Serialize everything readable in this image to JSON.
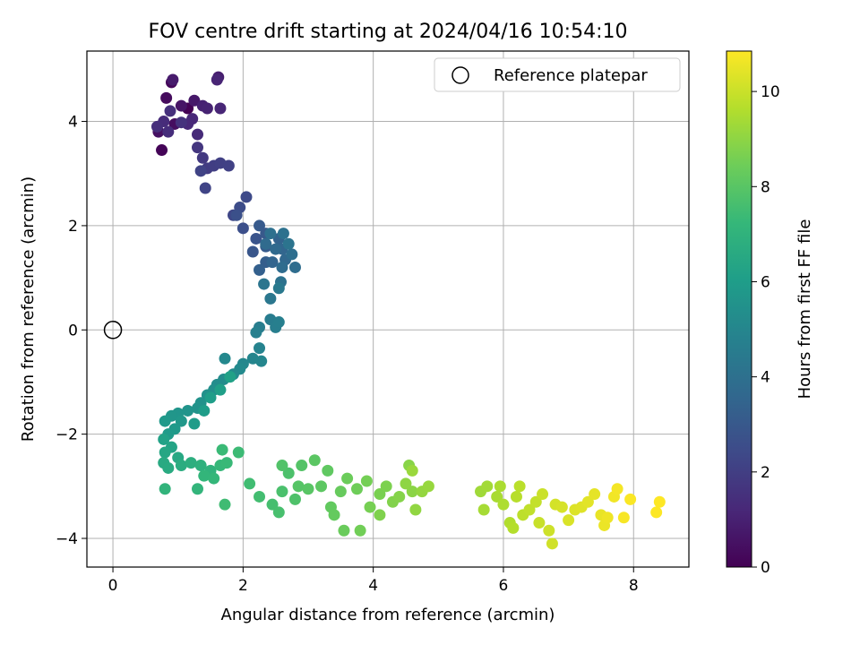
{
  "chart_data": {
    "type": "scatter",
    "title": "FOV centre drift starting at 2024/04/16 10:54:10",
    "xlabel": "Angular distance from reference (arcmin)",
    "ylabel": "Rotation from reference (arcmin)",
    "xlim": [
      -0.4,
      8.85
    ],
    "ylim": [
      -4.55,
      5.35
    ],
    "xticks": [
      0,
      2,
      4,
      6,
      8
    ],
    "yticks": [
      -4,
      -2,
      0,
      2,
      4
    ],
    "xtick_labels": [
      "0",
      "2",
      "4",
      "6",
      "8"
    ],
    "ytick_labels": [
      "−4",
      "−2",
      "0",
      "2",
      "4"
    ],
    "grid": true,
    "legend": {
      "position": "upper-right",
      "label": "Reference platepar"
    },
    "reference_point": {
      "x": 0,
      "y": 0
    },
    "colorbar": {
      "label": "Hours from first FF file",
      "colormap": "viridis",
      "range": [
        0,
        10.85
      ],
      "ticks": [
        0,
        2,
        4,
        6,
        8,
        10
      ],
      "tick_labels": [
        "0",
        "2",
        "4",
        "6",
        "8",
        "10"
      ]
    },
    "points": [
      {
        "x": 1.15,
        "y": 4.25,
        "h": 0.0
      },
      {
        "x": 0.75,
        "y": 3.45,
        "h": 0.1
      },
      {
        "x": 0.9,
        "y": 4.75,
        "h": 0.2
      },
      {
        "x": 0.82,
        "y": 4.45,
        "h": 0.3
      },
      {
        "x": 0.95,
        "y": 3.95,
        "h": 0.4
      },
      {
        "x": 0.7,
        "y": 3.8,
        "h": 0.5
      },
      {
        "x": 1.05,
        "y": 4.3,
        "h": 0.6
      },
      {
        "x": 1.25,
        "y": 4.4,
        "h": 0.7
      },
      {
        "x": 0.92,
        "y": 4.8,
        "h": 0.8
      },
      {
        "x": 1.62,
        "y": 4.85,
        "h": 0.9
      },
      {
        "x": 1.38,
        "y": 4.3,
        "h": 1.0
      },
      {
        "x": 1.45,
        "y": 4.25,
        "h": 1.05
      },
      {
        "x": 1.6,
        "y": 4.8,
        "h": 1.1
      },
      {
        "x": 1.65,
        "y": 4.25,
        "h": 1.15
      },
      {
        "x": 1.22,
        "y": 4.05,
        "h": 1.2
      },
      {
        "x": 1.15,
        "y": 3.95,
        "h": 1.25
      },
      {
        "x": 1.3,
        "y": 3.75,
        "h": 1.3
      },
      {
        "x": 0.78,
        "y": 4.0,
        "h": 1.35
      },
      {
        "x": 0.85,
        "y": 3.8,
        "h": 1.4
      },
      {
        "x": 0.68,
        "y": 3.9,
        "h": 1.45
      },
      {
        "x": 0.88,
        "y": 4.2,
        "h": 1.5
      },
      {
        "x": 1.05,
        "y": 3.98,
        "h": 1.55
      },
      {
        "x": 1.3,
        "y": 3.5,
        "h": 1.7
      },
      {
        "x": 1.38,
        "y": 3.3,
        "h": 1.8
      },
      {
        "x": 1.45,
        "y": 3.1,
        "h": 1.9
      },
      {
        "x": 1.55,
        "y": 3.15,
        "h": 2.0
      },
      {
        "x": 1.65,
        "y": 3.2,
        "h": 2.05
      },
      {
        "x": 1.78,
        "y": 3.15,
        "h": 2.1
      },
      {
        "x": 1.35,
        "y": 3.05,
        "h": 2.15
      },
      {
        "x": 1.42,
        "y": 2.72,
        "h": 2.2
      },
      {
        "x": 1.85,
        "y": 2.2,
        "h": 2.3
      },
      {
        "x": 2.05,
        "y": 2.55,
        "h": 2.4
      },
      {
        "x": 1.95,
        "y": 2.35,
        "h": 2.5
      },
      {
        "x": 2.0,
        "y": 1.95,
        "h": 2.6
      },
      {
        "x": 1.9,
        "y": 2.2,
        "h": 2.65
      },
      {
        "x": 2.2,
        "y": 1.75,
        "h": 2.8
      },
      {
        "x": 2.15,
        "y": 1.5,
        "h": 2.9
      },
      {
        "x": 2.35,
        "y": 1.85,
        "h": 3.0
      },
      {
        "x": 2.25,
        "y": 2.0,
        "h": 3.05
      },
      {
        "x": 2.35,
        "y": 1.6,
        "h": 3.1
      },
      {
        "x": 2.35,
        "y": 1.3,
        "h": 3.2
      },
      {
        "x": 2.25,
        "y": 1.15,
        "h": 3.3
      },
      {
        "x": 2.55,
        "y": 1.75,
        "h": 3.4
      },
      {
        "x": 2.45,
        "y": 1.3,
        "h": 3.5
      },
      {
        "x": 2.6,
        "y": 1.55,
        "h": 3.55
      },
      {
        "x": 2.65,
        "y": 1.35,
        "h": 3.6
      },
      {
        "x": 2.5,
        "y": 1.55,
        "h": 3.7
      },
      {
        "x": 2.35,
        "y": 1.65,
        "h": 3.75
      },
      {
        "x": 2.6,
        "y": 1.2,
        "h": 3.8
      },
      {
        "x": 2.8,
        "y": 1.2,
        "h": 3.85
      },
      {
        "x": 2.75,
        "y": 1.45,
        "h": 3.9
      },
      {
        "x": 2.42,
        "y": 1.85,
        "h": 4.0
      },
      {
        "x": 2.62,
        "y": 1.85,
        "h": 4.05
      },
      {
        "x": 2.58,
        "y": 0.92,
        "h": 4.1
      },
      {
        "x": 2.7,
        "y": 1.65,
        "h": 4.15
      },
      {
        "x": 2.32,
        "y": 0.88,
        "h": 4.2
      },
      {
        "x": 2.42,
        "y": 0.6,
        "h": 4.3
      },
      {
        "x": 2.55,
        "y": 0.8,
        "h": 4.4
      },
      {
        "x": 2.42,
        "y": 0.2,
        "h": 4.55
      },
      {
        "x": 2.25,
        "y": 0.05,
        "h": 4.6
      },
      {
        "x": 2.5,
        "y": 0.05,
        "h": 4.65
      },
      {
        "x": 2.55,
        "y": 0.15,
        "h": 4.7
      },
      {
        "x": 2.2,
        "y": -0.05,
        "h": 4.75
      },
      {
        "x": 2.25,
        "y": -0.35,
        "h": 4.85
      },
      {
        "x": 2.15,
        "y": -0.55,
        "h": 4.95
      },
      {
        "x": 2.28,
        "y": -0.6,
        "h": 5.0
      },
      {
        "x": 2.0,
        "y": -0.65,
        "h": 5.05
      },
      {
        "x": 1.72,
        "y": -0.55,
        "h": 5.1
      },
      {
        "x": 1.95,
        "y": -0.75,
        "h": 5.15
      },
      {
        "x": 1.85,
        "y": -0.85,
        "h": 5.2
      },
      {
        "x": 1.7,
        "y": -0.95,
        "h": 5.25
      },
      {
        "x": 1.6,
        "y": -1.05,
        "h": 5.3
      },
      {
        "x": 1.55,
        "y": -1.15,
        "h": 5.4
      },
      {
        "x": 1.45,
        "y": -1.25,
        "h": 5.45
      },
      {
        "x": 1.35,
        "y": -1.4,
        "h": 5.5
      },
      {
        "x": 1.3,
        "y": -1.5,
        "h": 5.55
      },
      {
        "x": 1.15,
        "y": -1.55,
        "h": 5.6
      },
      {
        "x": 1.0,
        "y": -1.6,
        "h": 5.65
      },
      {
        "x": 0.9,
        "y": -1.65,
        "h": 5.7
      },
      {
        "x": 1.05,
        "y": -1.75,
        "h": 5.75
      },
      {
        "x": 0.8,
        "y": -1.75,
        "h": 5.8
      },
      {
        "x": 0.95,
        "y": -1.9,
        "h": 5.85
      },
      {
        "x": 0.85,
        "y": -2.0,
        "h": 5.9
      },
      {
        "x": 1.25,
        "y": -1.8,
        "h": 5.95
      },
      {
        "x": 1.4,
        "y": -1.55,
        "h": 6.0
      },
      {
        "x": 1.5,
        "y": -1.3,
        "h": 6.05
      },
      {
        "x": 1.65,
        "y": -1.15,
        "h": 6.1
      },
      {
        "x": 1.8,
        "y": -0.9,
        "h": 6.15
      },
      {
        "x": 0.78,
        "y": -2.1,
        "h": 6.2
      },
      {
        "x": 0.9,
        "y": -2.25,
        "h": 6.3
      },
      {
        "x": 0.8,
        "y": -2.35,
        "h": 6.4
      },
      {
        "x": 1.0,
        "y": -2.45,
        "h": 6.5
      },
      {
        "x": 0.78,
        "y": -2.55,
        "h": 6.55
      },
      {
        "x": 0.85,
        "y": -2.65,
        "h": 6.6
      },
      {
        "x": 1.05,
        "y": -2.6,
        "h": 6.7
      },
      {
        "x": 1.2,
        "y": -2.55,
        "h": 6.8
      },
      {
        "x": 1.35,
        "y": -2.6,
        "h": 6.9
      },
      {
        "x": 1.5,
        "y": -2.7,
        "h": 7.0
      },
      {
        "x": 0.8,
        "y": -3.05,
        "h": 7.05
      },
      {
        "x": 1.3,
        "y": -3.05,
        "h": 7.1
      },
      {
        "x": 1.4,
        "y": -2.8,
        "h": 7.15
      },
      {
        "x": 1.55,
        "y": -2.85,
        "h": 7.2
      },
      {
        "x": 1.65,
        "y": -2.6,
        "h": 7.25
      },
      {
        "x": 1.75,
        "y": -2.55,
        "h": 7.3
      },
      {
        "x": 1.68,
        "y": -2.3,
        "h": 7.35
      },
      {
        "x": 1.93,
        "y": -2.35,
        "h": 7.4
      },
      {
        "x": 1.72,
        "y": -3.35,
        "h": 7.45
      },
      {
        "x": 2.1,
        "y": -2.95,
        "h": 7.5
      },
      {
        "x": 2.25,
        "y": -3.2,
        "h": 7.55
      },
      {
        "x": 2.45,
        "y": -3.35,
        "h": 7.6
      },
      {
        "x": 2.55,
        "y": -3.5,
        "h": 7.65
      },
      {
        "x": 2.6,
        "y": -3.1,
        "h": 7.7
      },
      {
        "x": 2.7,
        "y": -2.75,
        "h": 7.75
      },
      {
        "x": 2.8,
        "y": -3.25,
        "h": 7.8
      },
      {
        "x": 2.6,
        "y": -2.6,
        "h": 7.85
      },
      {
        "x": 2.9,
        "y": -2.6,
        "h": 7.9
      },
      {
        "x": 2.85,
        "y": -3.0,
        "h": 7.95
      },
      {
        "x": 3.0,
        "y": -3.05,
        "h": 8.0
      },
      {
        "x": 3.1,
        "y": -2.5,
        "h": 8.05
      },
      {
        "x": 3.2,
        "y": -3.0,
        "h": 8.1
      },
      {
        "x": 3.3,
        "y": -2.7,
        "h": 8.15
      },
      {
        "x": 3.35,
        "y": -3.4,
        "h": 8.2
      },
      {
        "x": 3.4,
        "y": -3.55,
        "h": 8.25
      },
      {
        "x": 3.5,
        "y": -3.1,
        "h": 8.3
      },
      {
        "x": 3.55,
        "y": -3.85,
        "h": 8.35
      },
      {
        "x": 3.6,
        "y": -2.85,
        "h": 8.4
      },
      {
        "x": 3.75,
        "y": -3.05,
        "h": 8.45
      },
      {
        "x": 3.8,
        "y": -3.85,
        "h": 8.5
      },
      {
        "x": 3.9,
        "y": -2.9,
        "h": 8.55
      },
      {
        "x": 3.95,
        "y": -3.4,
        "h": 8.6
      },
      {
        "x": 4.1,
        "y": -3.15,
        "h": 8.65
      },
      {
        "x": 4.2,
        "y": -3.0,
        "h": 8.7
      },
      {
        "x": 4.1,
        "y": -3.55,
        "h": 8.75
      },
      {
        "x": 4.3,
        "y": -3.3,
        "h": 8.8
      },
      {
        "x": 4.4,
        "y": -3.2,
        "h": 8.85
      },
      {
        "x": 4.55,
        "y": -2.6,
        "h": 8.9
      },
      {
        "x": 4.6,
        "y": -3.1,
        "h": 8.95
      },
      {
        "x": 4.5,
        "y": -2.95,
        "h": 9.0
      },
      {
        "x": 4.65,
        "y": -3.45,
        "h": 9.05
      },
      {
        "x": 4.75,
        "y": -3.1,
        "h": 9.1
      },
      {
        "x": 4.85,
        "y": -3.0,
        "h": 9.15
      },
      {
        "x": 4.6,
        "y": -2.7,
        "h": 9.2
      },
      {
        "x": 5.65,
        "y": -3.1,
        "h": 9.3
      },
      {
        "x": 5.75,
        "y": -3.0,
        "h": 9.35
      },
      {
        "x": 5.7,
        "y": -3.45,
        "h": 9.4
      },
      {
        "x": 5.9,
        "y": -3.2,
        "h": 9.45
      },
      {
        "x": 5.95,
        "y": -3.0,
        "h": 9.5
      },
      {
        "x": 6.0,
        "y": -3.35,
        "h": 9.55
      },
      {
        "x": 6.1,
        "y": -3.7,
        "h": 9.6
      },
      {
        "x": 6.15,
        "y": -3.8,
        "h": 9.65
      },
      {
        "x": 6.2,
        "y": -3.2,
        "h": 9.7
      },
      {
        "x": 6.25,
        "y": -3.0,
        "h": 9.75
      },
      {
        "x": 6.3,
        "y": -3.55,
        "h": 9.8
      },
      {
        "x": 6.4,
        "y": -3.45,
        "h": 9.85
      },
      {
        "x": 6.5,
        "y": -3.3,
        "h": 9.9
      },
      {
        "x": 6.55,
        "y": -3.7,
        "h": 9.95
      },
      {
        "x": 6.6,
        "y": -3.15,
        "h": 10.0
      },
      {
        "x": 6.7,
        "y": -3.85,
        "h": 10.05
      },
      {
        "x": 6.75,
        "y": -4.1,
        "h": 10.1
      },
      {
        "x": 6.8,
        "y": -3.35,
        "h": 10.15
      },
      {
        "x": 6.9,
        "y": -3.4,
        "h": 10.2
      },
      {
        "x": 7.0,
        "y": -3.65,
        "h": 10.25
      },
      {
        "x": 7.1,
        "y": -3.45,
        "h": 10.3
      },
      {
        "x": 7.2,
        "y": -3.4,
        "h": 10.35
      },
      {
        "x": 7.3,
        "y": -3.3,
        "h": 10.4
      },
      {
        "x": 7.4,
        "y": -3.15,
        "h": 10.45
      },
      {
        "x": 7.5,
        "y": -3.55,
        "h": 10.5
      },
      {
        "x": 7.55,
        "y": -3.75,
        "h": 10.55
      },
      {
        "x": 7.6,
        "y": -3.6,
        "h": 10.6
      },
      {
        "x": 7.7,
        "y": -3.2,
        "h": 10.65
      },
      {
        "x": 7.75,
        "y": -3.05,
        "h": 10.7
      },
      {
        "x": 7.85,
        "y": -3.6,
        "h": 10.75
      },
      {
        "x": 7.95,
        "y": -3.25,
        "h": 10.8
      },
      {
        "x": 8.35,
        "y": -3.5,
        "h": 10.83
      },
      {
        "x": 8.4,
        "y": -3.3,
        "h": 10.85
      }
    ]
  }
}
